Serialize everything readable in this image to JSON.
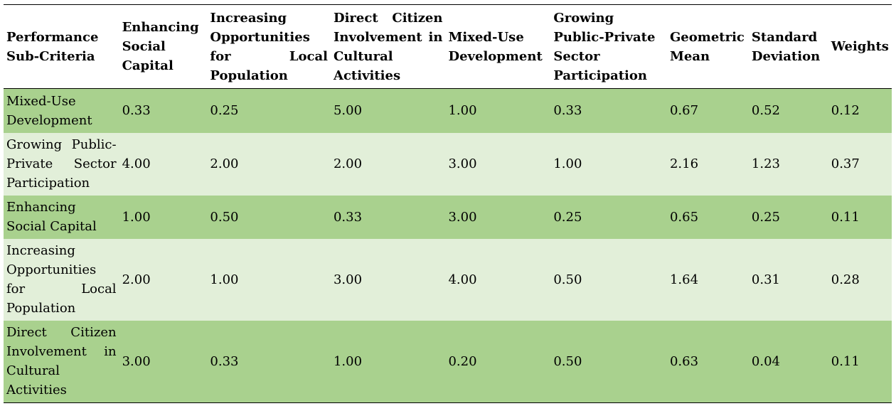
{
  "table": {
    "headers": [
      "Performance Sub-Criteria",
      "Enhancing Social Capital",
      "Increasing Opportunities for Local Population",
      "Direct Citizen Involvement in Cultural Activities",
      "Mixed-Use Development",
      "Growing Public-Private Sector Participation",
      "Geometric Mean",
      "Standard Deviation",
      "Weights"
    ],
    "rows": [
      [
        "Mixed-Use Development",
        "0.33",
        "0.25",
        "5.00",
        "1.00",
        "0.33",
        "0.67",
        "0.52",
        "0.12"
      ],
      [
        "Growing Public-Private Sector Participation",
        "4.00",
        "2.00",
        "2.00",
        "3.00",
        "1.00",
        "2.16",
        "1.23",
        "0.37"
      ],
      [
        "Enhancing Social Capital",
        "1.00",
        "0.50",
        "0.33",
        "3.00",
        "0.25",
        "0.65",
        "0.25",
        "0.11"
      ],
      [
        "Increasing Opportunities for Local Population",
        "2.00",
        "1.00",
        "3.00",
        "4.00",
        "0.50",
        "1.64",
        "0.31",
        "0.28"
      ],
      [
        "Direct Citizen Involvement in Cultural Activities",
        "3.00",
        "0.33",
        "1.00",
        "0.20",
        "0.50",
        "0.63",
        "0.04",
        "0.11"
      ]
    ]
  }
}
